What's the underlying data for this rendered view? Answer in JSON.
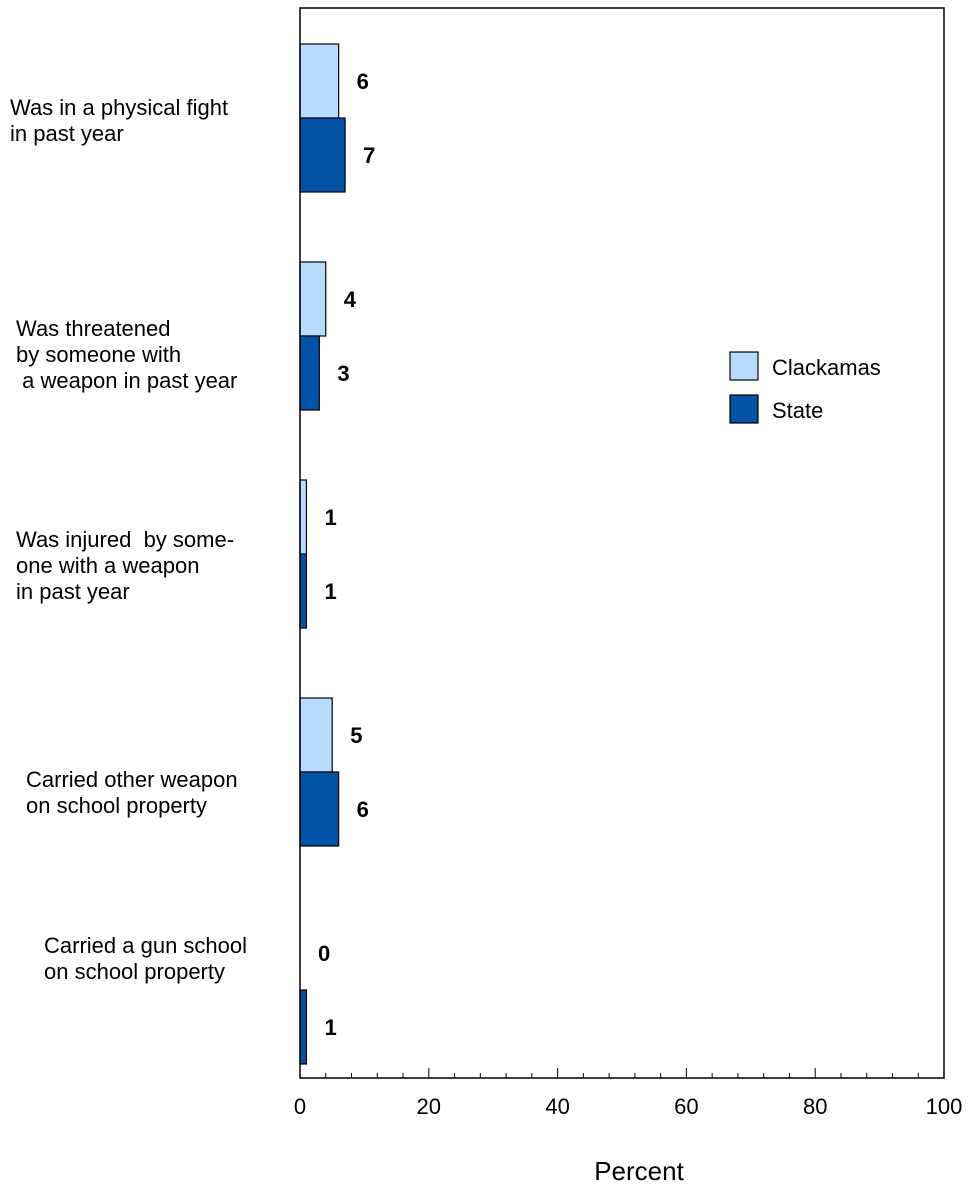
{
  "chart_data": {
    "type": "bar",
    "orientation": "horizontal",
    "categories": [
      [
        "Was in a physical fight",
        "in past year"
      ],
      [
        "Was threatened",
        "by someone with",
        " a weapon in past year"
      ],
      [
        "Was injured  by some-",
        "one with a weapon",
        "in past year"
      ],
      [
        "Carried other weapon",
        "on school property"
      ],
      [
        "Carried a gun school",
        "on school property"
      ]
    ],
    "series": [
      {
        "name": "Clackamas",
        "values": [
          6,
          4,
          1,
          5,
          0
        ],
        "color": "#b7dcff"
      },
      {
        "name": "State",
        "values": [
          7,
          3,
          1,
          6,
          1
        ],
        "color": "#0252a6"
      }
    ],
    "xlabel": "Percent",
    "xlim": [
      0,
      100
    ],
    "xticks": [
      0,
      20,
      40,
      60,
      80,
      100
    ],
    "grid": false,
    "legend_position": "right-middle"
  }
}
